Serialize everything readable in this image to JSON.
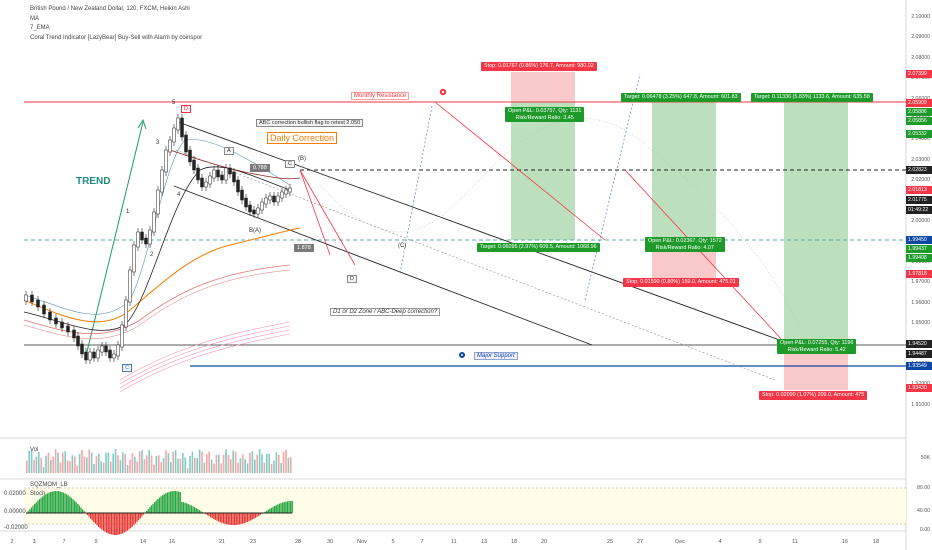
{
  "legend": {
    "symbol": "British Pound / New Zealand Dollar, 120, FXCM, Heikin Ashi",
    "ma": "MA",
    "ema": "7_EMA",
    "indicator": "Coral Trend Indicator [LazyBear] Buy-Sell with Alarm by coinspor"
  },
  "annotations": {
    "trend": "TREND",
    "monthly_resistance": "Monthly Resistance",
    "major_support": "Major Support",
    "abc_note": "ABC correction bullish flag to retest 2.050",
    "daily_correction": "Daily Correction",
    "d_zone": "D1 or D2  Zone / ABC-Deep correction?",
    "fib_788": "0.788",
    "fib_1878": "1.878",
    "wave_5": "5",
    "wave_3": "3",
    "wave_4": "4",
    "wave_1": "1",
    "wave_2": "2",
    "label_D": "D",
    "label_C_low": "C",
    "label_C_top": "C",
    "label_B": "B",
    "label_A": "A",
    "label_Ba": "(B)",
    "label_Aa": "B(A)",
    "label_Cc": "(C)",
    "label_D2": "D"
  },
  "positions": [
    {
      "stop": "Stop: 0.01767 (0.86%) 176.7, Amount: 980.02",
      "open": "Open P&L: 0.03757, Qty: 1131",
      "rr": "Risk/Reward Ratio: 3.45",
      "target": "Target: 0.06095 (2.97%) 609.5, Amount: 1068.96"
    },
    {
      "stop": "Stop: 0.01590 (0.80%) 159.0, Amount: 475.01",
      "open": "Open P&L: 0.02367, Qty: 1572",
      "rr": "Risk/Reward Ratio: 4.07",
      "target": "Target: 0.06478 (3.25%) 647.8, Amount: 601.83"
    },
    {
      "stop": "Stop: 0.02090 (1.07%) 209.0, Amount: 475",
      "open": "Open P&L: 0.07255, Qty: 1196",
      "rr": "Risk/Reward Ratio: 5.42",
      "target": "Target: 0.11336 (5.83%) 1133.6, Amount: 635.58"
    }
  ],
  "price_axis": [
    "2.10000",
    "2.09000",
    "2.08000",
    "2.07000",
    "2.06000",
    "2.05000",
    "2.04000",
    "2.03000",
    "2.02000",
    "2.01000",
    "2.00000",
    "1.99000",
    "1.98000",
    "1.97000",
    "1.96000",
    "1.95000",
    "1.94000",
    "1.93000",
    "1.92000",
    "1.91000"
  ],
  "price_labels": {
    "p1": "2.07399",
    "p2": "2.05909",
    "p3": "2.05886",
    "p4": "2.05856",
    "p5": "2.05332",
    "p6": "2.02823",
    "p7": "2.01813",
    "p8": "2.01775",
    "p9": "01:49:22",
    "p10": "1.99450",
    "p11": "1.99437",
    "p12": "1.99408",
    "p13": "1.97818",
    "p14": "1.94520",
    "p15": "1.94487",
    "p16": "1.93549",
    "p17": "1.93430"
  },
  "volume": {
    "label": "Vol",
    "tick": "50K"
  },
  "stoch": {
    "label1": "SQZMOM_LB",
    "label2": "Stoch",
    "v1": "0.02000",
    "v2": "0.00000",
    "v3": "-0.02000",
    "t1": "80.00",
    "t2": "40.00",
    "t3": "0.00"
  },
  "dates": [
    "2",
    "3",
    "7",
    "9",
    "14",
    "16",
    "21",
    "23",
    "28",
    "30",
    "Nov",
    "5",
    "7",
    "11",
    "13",
    "18",
    "20",
    "25",
    "27",
    "Dec",
    "4",
    "9",
    "11",
    "16",
    "18"
  ],
  "colors": {
    "up": "#089981",
    "down": "#f23645",
    "profit": "#a5d6a7",
    "loss": "#f5b7b5",
    "support": "#0d47a1"
  }
}
